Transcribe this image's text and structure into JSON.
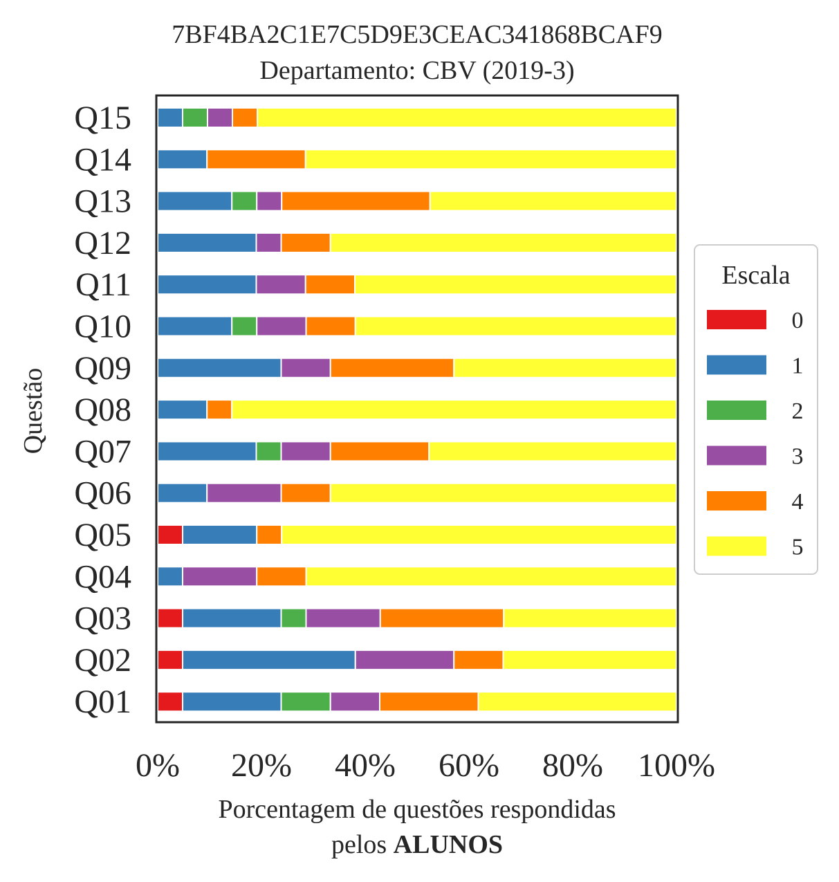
{
  "chart_data": {
    "type": "bar",
    "orientation": "horizontal",
    "stacked": true,
    "title": "7BF4BA2C1E7C5D9E3CEAC341868BCAF9",
    "subtitle": "Departamento: CBV (2019-3)",
    "xlabel_line1": "Porcentagem de questões respondidas",
    "xlabel_line2_prefix": "pelos ",
    "xlabel_line2_bold": "ALUNOS",
    "ylabel": "Questão",
    "xlim": [
      0,
      100
    ],
    "xticks": [
      "0%",
      "20%",
      "40%",
      "60%",
      "80%",
      "100%"
    ],
    "grid": false,
    "legend_title": "Escala",
    "legend_position": "right",
    "categories": [
      "Q01",
      "Q02",
      "Q03",
      "Q04",
      "Q05",
      "Q06",
      "Q07",
      "Q08",
      "Q09",
      "Q10",
      "Q11",
      "Q12",
      "Q13",
      "Q14",
      "Q15"
    ],
    "series": [
      {
        "name": "0",
        "color": "#e41a1c",
        "values": [
          4.8,
          4.8,
          4.8,
          0,
          4.8,
          0,
          0,
          0,
          0,
          0,
          0,
          0,
          0,
          0,
          0
        ]
      },
      {
        "name": "1",
        "color": "#377eb8",
        "values": [
          19.0,
          33.3,
          19.0,
          4.8,
          14.3,
          9.5,
          19.0,
          9.5,
          23.8,
          14.3,
          19.0,
          19.0,
          14.3,
          9.5,
          4.8
        ]
      },
      {
        "name": "2",
        "color": "#4daf4a",
        "values": [
          9.5,
          0,
          4.8,
          0,
          0,
          0,
          4.8,
          0,
          0,
          4.8,
          0,
          0,
          4.8,
          0,
          4.8
        ]
      },
      {
        "name": "3",
        "color": "#984ea3",
        "values": [
          9.5,
          19.0,
          14.3,
          14.3,
          0,
          14.3,
          9.5,
          0,
          9.5,
          9.5,
          9.5,
          4.8,
          4.8,
          0,
          4.8
        ]
      },
      {
        "name": "4",
        "color": "#ff7f00",
        "values": [
          19.0,
          9.5,
          23.8,
          9.5,
          4.8,
          9.5,
          19.0,
          4.8,
          23.8,
          9.5,
          9.5,
          9.5,
          28.6,
          19.0,
          4.8
        ]
      },
      {
        "name": "5",
        "color": "#ffff33",
        "values": [
          38.2,
          33.4,
          33.3,
          71.4,
          76.1,
          66.7,
          47.7,
          85.7,
          42.9,
          61.9,
          62.0,
          66.7,
          47.5,
          71.5,
          80.8
        ]
      }
    ]
  }
}
